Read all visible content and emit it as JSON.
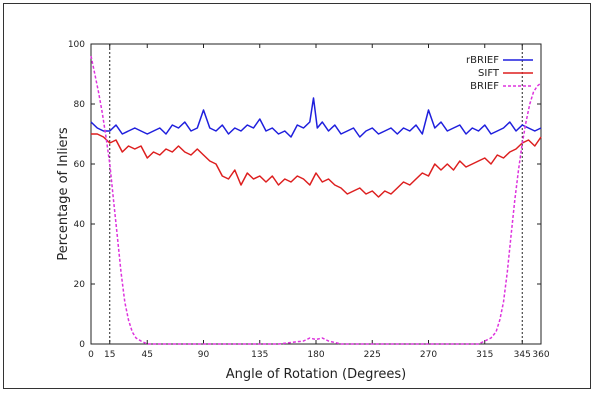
{
  "chart_data": {
    "type": "line",
    "title": "",
    "xlabel": "Angle of Rotation (Degrees)",
    "ylabel": "Percentage of Inliers",
    "xlim": [
      0,
      360
    ],
    "ylim": [
      0,
      100
    ],
    "xticks": [
      0,
      15,
      45,
      90,
      135,
      180,
      225,
      270,
      315,
      345,
      360
    ],
    "yticks": [
      0,
      20,
      40,
      60,
      80,
      100
    ],
    "grid": false,
    "legend": "top-right",
    "reference_lines_x": [
      15,
      345
    ],
    "series": [
      {
        "name": "rBRIEF",
        "color": "#1f1fdd",
        "style": "solid",
        "x": [
          0,
          5,
          10,
          15,
          20,
          25,
          30,
          35,
          40,
          45,
          50,
          55,
          60,
          65,
          70,
          75,
          80,
          85,
          90,
          95,
          100,
          105,
          110,
          115,
          120,
          125,
          130,
          135,
          140,
          145,
          150,
          155,
          160,
          165,
          170,
          175,
          178,
          181,
          185,
          190,
          195,
          200,
          205,
          210,
          215,
          220,
          225,
          230,
          235,
          240,
          245,
          250,
          255,
          260,
          265,
          270,
          275,
          280,
          285,
          290,
          295,
          300,
          305,
          310,
          315,
          320,
          325,
          330,
          335,
          340,
          345,
          350,
          355,
          360
        ],
        "y": [
          74,
          72,
          71,
          71,
          73,
          70,
          71,
          72,
          71,
          70,
          71,
          72,
          70,
          73,
          72,
          74,
          71,
          72,
          78,
          72,
          71,
          73,
          70,
          72,
          71,
          73,
          72,
          75,
          71,
          72,
          70,
          71,
          69,
          73,
          72,
          74,
          82,
          72,
          74,
          71,
          73,
          70,
          71,
          72,
          69,
          71,
          72,
          70,
          71,
          72,
          70,
          72,
          71,
          73,
          70,
          78,
          72,
          74,
          71,
          72,
          73,
          70,
          72,
          71,
          73,
          70,
          71,
          72,
          74,
          71,
          73,
          72,
          71,
          72
        ]
      },
      {
        "name": "SIFT",
        "color": "#dd1f1f",
        "style": "solid",
        "x": [
          0,
          5,
          10,
          15,
          20,
          25,
          30,
          35,
          40,
          45,
          50,
          55,
          60,
          65,
          70,
          75,
          80,
          85,
          90,
          95,
          100,
          105,
          110,
          115,
          120,
          125,
          130,
          135,
          140,
          145,
          150,
          155,
          160,
          165,
          170,
          175,
          180,
          185,
          190,
          195,
          200,
          205,
          210,
          215,
          220,
          225,
          230,
          235,
          240,
          245,
          250,
          255,
          260,
          265,
          270,
          275,
          280,
          285,
          290,
          295,
          300,
          305,
          310,
          315,
          320,
          325,
          330,
          335,
          340,
          345,
          350,
          355,
          360
        ],
        "y": [
          70,
          70,
          69,
          67,
          68,
          64,
          66,
          65,
          66,
          62,
          64,
          63,
          65,
          64,
          66,
          64,
          63,
          65,
          63,
          61,
          60,
          56,
          55,
          58,
          53,
          57,
          55,
          56,
          54,
          56,
          53,
          55,
          54,
          56,
          55,
          53,
          57,
          54,
          55,
          53,
          52,
          50,
          51,
          52,
          50,
          51,
          49,
          51,
          50,
          52,
          54,
          53,
          55,
          57,
          56,
          60,
          58,
          60,
          58,
          61,
          59,
          60,
          61,
          62,
          60,
          63,
          62,
          64,
          65,
          67,
          68,
          66,
          69
        ]
      },
      {
        "name": "BRIEF",
        "color": "#dd33dd",
        "style": "dashed",
        "x": [
          0,
          3,
          6,
          9,
          12,
          15,
          18,
          21,
          24,
          27,
          30,
          33,
          36,
          40,
          45,
          50,
          60,
          90,
          120,
          150,
          170,
          175,
          180,
          185,
          190,
          200,
          240,
          280,
          300,
          310,
          315,
          320,
          324,
          327,
          330,
          333,
          336,
          339,
          342,
          345,
          348,
          351,
          354,
          357,
          360
        ],
        "y": [
          96,
          90,
          84,
          77,
          69,
          60,
          48,
          36,
          24,
          14,
          8,
          4,
          2,
          1,
          0,
          0,
          0,
          0,
          0,
          0,
          1,
          2,
          1.5,
          2,
          1,
          0,
          0,
          0,
          0,
          0,
          1,
          2,
          4,
          8,
          14,
          24,
          36,
          48,
          58,
          67,
          74,
          80,
          84,
          86,
          87
        ]
      }
    ]
  }
}
